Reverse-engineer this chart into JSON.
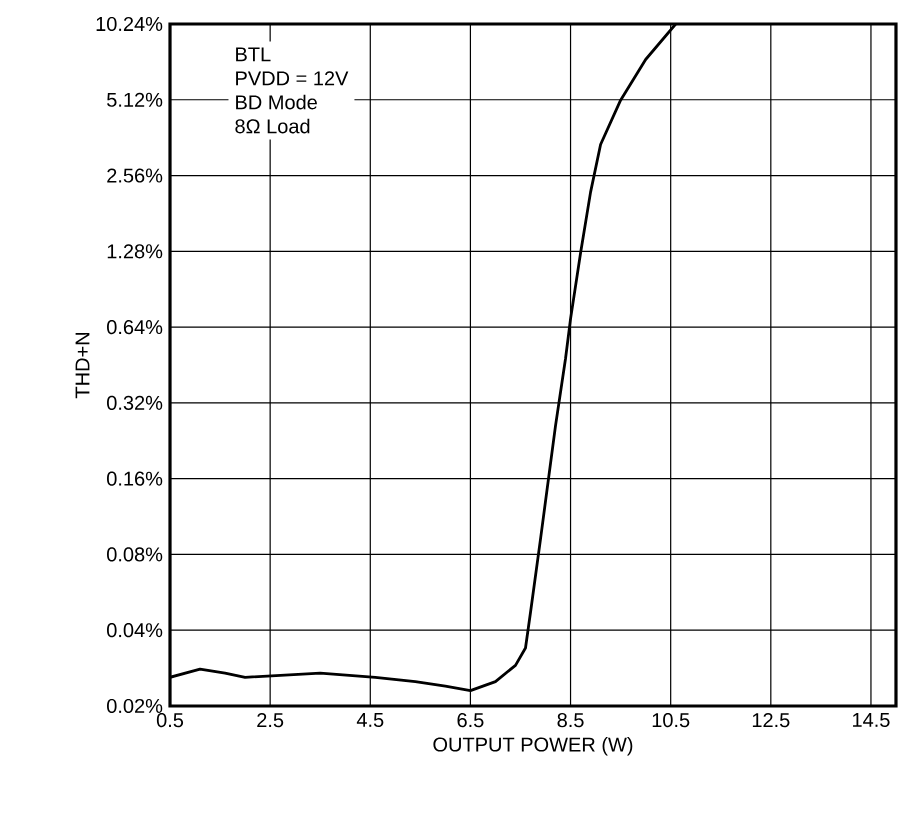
{
  "chart_data": {
    "type": "line",
    "xlabel": "OUTPUT POWER (W)",
    "ylabel": "THD+N",
    "annotations": [
      "BTL",
      "PVDD = 12V",
      "BD Mode",
      "8Ω Load"
    ],
    "log": "y",
    "grid": true,
    "xlim": [
      0.5,
      15
    ],
    "ylim": [
      0.02,
      10.24
    ],
    "xticks": [
      0.5,
      2.5,
      4.5,
      6.5,
      8.5,
      10.5,
      12.5,
      14.5
    ],
    "yticks": [
      {
        "value": 0.02,
        "label": "0.02%"
      },
      {
        "value": 0.04,
        "label": "0.04%"
      },
      {
        "value": 0.08,
        "label": "0.08%"
      },
      {
        "value": 0.16,
        "label": "0.16%"
      },
      {
        "value": 0.32,
        "label": "0.32%"
      },
      {
        "value": 0.64,
        "label": "0.64%"
      },
      {
        "value": 1.28,
        "label": "1.28%"
      },
      {
        "value": 2.56,
        "label": "2.56%"
      },
      {
        "value": 5.12,
        "label": "5.12%"
      },
      {
        "value": 10.24,
        "label": "10.24%"
      }
    ],
    "series": [
      {
        "color": "#000000",
        "x": [
          0.5,
          1.1,
          1.6,
          2.0,
          3.5,
          4.6,
          5.4,
          6.0,
          6.5,
          7.0,
          7.4,
          7.6,
          7.7,
          7.9,
          8.2,
          8.4,
          8.5,
          8.7,
          8.9,
          9.1,
          9.5,
          10.0,
          10.6
        ],
        "values": [
          0.026,
          0.028,
          0.027,
          0.026,
          0.027,
          0.026,
          0.025,
          0.024,
          0.023,
          0.025,
          0.029,
          0.034,
          0.047,
          0.092,
          0.26,
          0.48,
          0.69,
          1.26,
          2.2,
          3.4,
          5.1,
          7.4,
          10.24
        ]
      }
    ]
  }
}
